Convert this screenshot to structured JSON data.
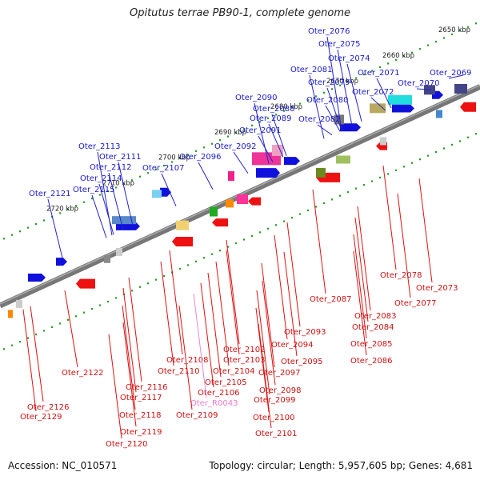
{
  "header": {
    "title": "Opitutus terrae PB90-1, complete genome"
  },
  "footer": {
    "accession": "Accession: NC_010571",
    "summary": "Topology: circular; Length: 5,957,605 bp; Genes: 4,681"
  },
  "ruler_labels": [
    "2650 kbp",
    "2660 kbp",
    "2670 kbp",
    "2680 kbp",
    "2690 kbp",
    "2700 kbp",
    "2710 kbp",
    "2720 kbp"
  ],
  "upper_gene_labels": [
    "Oter_2076",
    "Oter_2075",
    "Oter_2074",
    "Oter_2081",
    "Oter_2071",
    "Oter_2069",
    "Oter_2079",
    "Oter_2070",
    "Oter_2090",
    "Oter_2072",
    "Oter_2088",
    "Oter_2080",
    "Oter_2089",
    "Oter_2082",
    "Oter_2091",
    "Oter_2092",
    "Oter_2113",
    "Oter_2111",
    "Oter_2096",
    "Oter_2112",
    "Oter_2107",
    "Oter_2114",
    "Oter_2115",
    "Oter_2121"
  ],
  "lower_gene_labels": [
    "Oter_2078",
    "Oter_2073",
    "Oter_2087",
    "Oter_2077",
    "Oter_2083",
    "Oter_2084",
    "Oter_2093",
    "Oter_2094",
    "Oter_2085",
    "Oter_2102",
    "Oter_2108",
    "Oter_2103",
    "Oter_2095",
    "Oter_2110",
    "Oter_2086",
    "Oter_2104",
    "Oter_2097",
    "Oter_2122",
    "Oter_2105",
    "Oter_2116",
    "Oter_2098",
    "Oter_2106",
    "Oter_2117",
    "Oter_2099",
    "Oter_R0043",
    "Oter_2126",
    "Oter_2100",
    "Oter_2129",
    "Oter_2118",
    "Oter_2109",
    "Oter_2119",
    "Oter_2101",
    "Oter_2120"
  ]
}
